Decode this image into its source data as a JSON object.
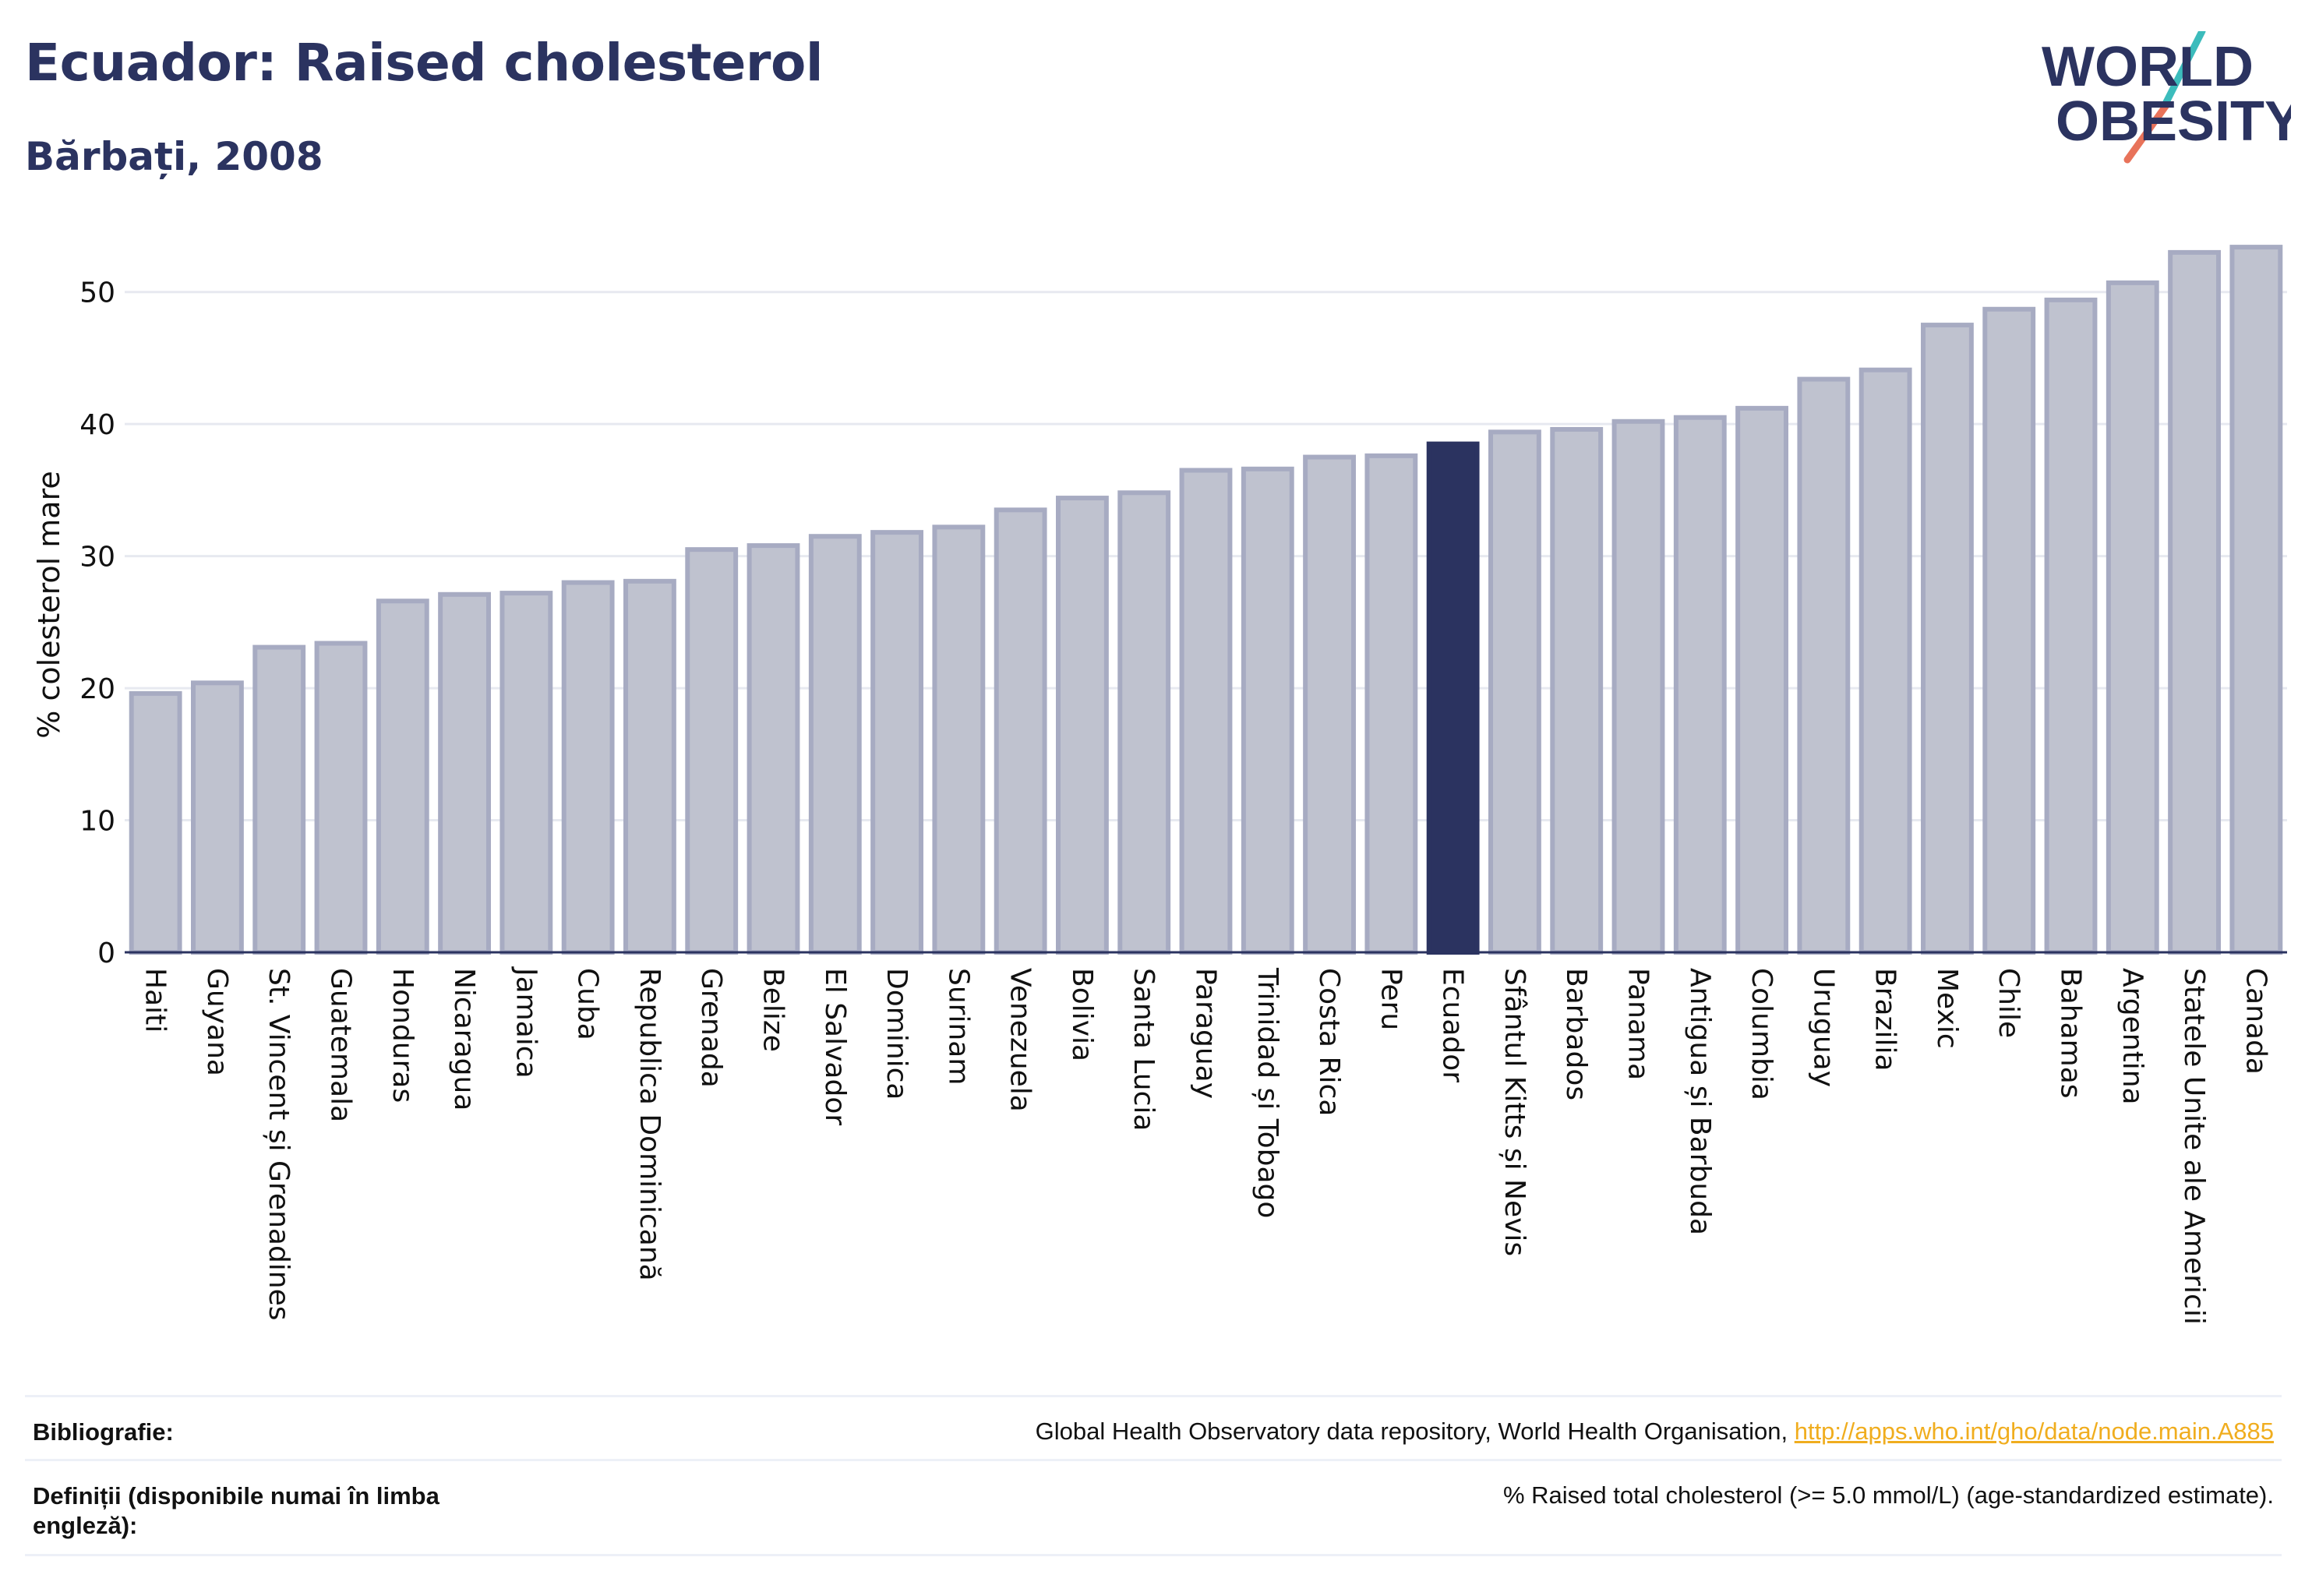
{
  "header": {
    "title": "Ecuador: Raised cholesterol",
    "subtitle": "Bărbați, 2008"
  },
  "logo": {
    "line1": "WORLD",
    "line2": "OBESITY"
  },
  "colors": {
    "bar": "#bfc2cf",
    "bar_border": "#a7abc2",
    "highlight": "#2b3360",
    "text": "#2b3360",
    "link": "#f0ad1e"
  },
  "chart_data": {
    "type": "bar",
    "title": "",
    "ylabel": "% colesterol mare",
    "xlabel": "",
    "ylim": [
      0,
      55
    ],
    "yticks": [
      0,
      10,
      20,
      30,
      40,
      50
    ],
    "grid": true,
    "highlight": "Ecuador",
    "categories": [
      "Haiti",
      "Guyana",
      "St. Vincent și Grenadines",
      "Guatemala",
      "Honduras",
      "Nicaragua",
      "Jamaica",
      "Cuba",
      "Republica Dominicană",
      "Grenada",
      "Belize",
      "El Salvador",
      "Dominica",
      "Surinam",
      "Venezuela",
      "Bolivia",
      "Santa Lucia",
      "Paraguay",
      "Trinidad și Tobago",
      "Costa Rica",
      "Peru",
      "Ecuador",
      "Sfântul Kitts și Nevis",
      "Barbados",
      "Panama",
      "Antigua și Barbuda",
      "Columbia",
      "Uruguay",
      "Brazilia",
      "Mexic",
      "Chile",
      "Bahamas",
      "Argentina",
      "Statele Unite ale Americii",
      "Canada"
    ],
    "values": [
      19.6,
      20.4,
      23.1,
      23.4,
      26.6,
      27.1,
      27.2,
      28.0,
      28.1,
      30.5,
      30.8,
      31.5,
      31.8,
      32.2,
      33.5,
      34.4,
      34.8,
      36.5,
      36.6,
      37.5,
      37.6,
      38.5,
      39.4,
      39.6,
      40.2,
      40.5,
      41.2,
      43.4,
      44.1,
      47.5,
      48.7,
      49.4,
      50.7,
      53.0,
      53.4
    ]
  },
  "footer": {
    "bibliography_label": "Bibliografie:",
    "bibliography_text": "Global Health Observatory data repository, World Health Organisation, ",
    "bibliography_link": "http://apps.who.int/gho/data/node.main.A885",
    "definitions_label": "Definiții (disponibile numai în limba engleză):",
    "definitions_text": "% Raised total cholesterol (>= 5.0 mmol/L) (age-standardized estimate)."
  }
}
